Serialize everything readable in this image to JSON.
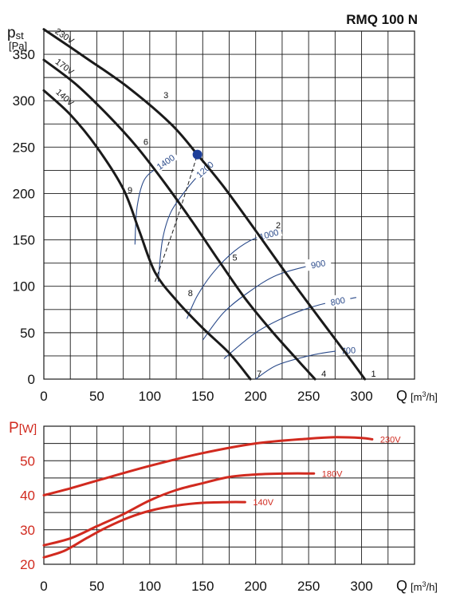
{
  "title": "RMQ 100 N",
  "chart_data": [
    {
      "type": "line",
      "title": "RMQ 100 N",
      "ylabel_main": "p",
      "ylabel_sub": "st",
      "yunit": "[Pa]",
      "xlabel": "Q",
      "xunit_pre": "[m",
      "xunit_sup": "3",
      "xunit_post": "/h]",
      "xlim": [
        0,
        350
      ],
      "ylim": [
        0,
        375
      ],
      "xticks": [
        "0",
        "50",
        "100",
        "150",
        "200",
        "250",
        "300"
      ],
      "yticks": [
        "0",
        "50",
        "100",
        "150",
        "200",
        "250",
        "300",
        "350"
      ],
      "grid": true,
      "series": [
        {
          "name": "230V",
          "color": "#1a1a1a",
          "points": [
            [
              0,
              377
            ],
            [
              40,
              346
            ],
            [
              80,
              314
            ],
            [
              120,
              275
            ],
            [
              145,
              242
            ],
            [
              170,
              207
            ],
            [
              200,
              160
            ],
            [
              230,
              112
            ],
            [
              260,
              66
            ],
            [
              285,
              28
            ],
            [
              303,
              0
            ]
          ]
        },
        {
          "name": "170V",
          "color": "#1a1a1a",
          "points": [
            [
              0,
              344
            ],
            [
              30,
              318
            ],
            [
              60,
              285
            ],
            [
              88,
              250
            ],
            [
              115,
              210
            ],
            [
              140,
              170
            ],
            [
              165,
              128
            ],
            [
              190,
              87
            ],
            [
              215,
              52
            ],
            [
              240,
              20
            ],
            [
              256,
              0
            ]
          ]
        },
        {
          "name": "140V",
          "color": "#1a1a1a",
          "points": [
            [
              0,
              311
            ],
            [
              25,
              285
            ],
            [
              50,
              250
            ],
            [
              75,
              205
            ],
            [
              90,
              160
            ],
            [
              105,
              115
            ],
            [
              125,
              85
            ],
            [
              150,
              55
            ],
            [
              175,
              28
            ],
            [
              195,
              0
            ]
          ]
        }
      ],
      "rpm_curves": [
        {
          "label": "1400",
          "color": "#2a4a8a",
          "points": [
            [
              86,
              145
            ],
            [
              88,
              185
            ],
            [
              95,
              215
            ],
            [
              110,
              230
            ],
            [
              120,
              238
            ]
          ]
        },
        {
          "label": "1200",
          "color": "#2a4a8a",
          "points": [
            [
              108,
              105
            ],
            [
              112,
              150
            ],
            [
              120,
              180
            ],
            [
              135,
              205
            ],
            [
              148,
              222
            ],
            [
              156,
              230
            ]
          ]
        },
        {
          "label": "1000",
          "color": "#2a4a8a",
          "points": [
            [
              135,
              65
            ],
            [
              145,
              90
            ],
            [
              160,
              115
            ],
            [
              180,
              138
            ],
            [
              200,
              152
            ],
            [
              225,
              160
            ]
          ]
        },
        {
          "label": "900",
          "color": "#2a4a8a",
          "points": [
            [
              150,
              42
            ],
            [
              170,
              72
            ],
            [
              195,
              95
            ],
            [
              220,
              112
            ],
            [
              250,
              122
            ],
            [
              268,
              126
            ]
          ]
        },
        {
          "label": "800",
          "color": "#2a4a8a",
          "points": [
            [
              170,
              22
            ],
            [
              200,
              50
            ],
            [
              230,
              68
            ],
            [
              260,
              80
            ],
            [
              295,
              88
            ]
          ]
        },
        {
          "label": "700",
          "color": "#2a4a8a",
          "points": [
            [
              200,
              0
            ],
            [
              220,
              15
            ],
            [
              250,
              25
            ],
            [
              275,
              30
            ],
            [
              300,
              32
            ]
          ]
        }
      ],
      "system_line": {
        "style": "dashed",
        "points": [
          [
            105,
            105
          ],
          [
            125,
            170
          ],
          [
            145,
            242
          ]
        ]
      },
      "operating_point": {
        "x": 145,
        "y": 242
      },
      "point_labels": [
        {
          "label": "1",
          "x": 303,
          "y": 0
        },
        {
          "label": "2",
          "x": 213,
          "y": 160
        },
        {
          "label": "3",
          "x": 107,
          "y": 300
        },
        {
          "label": "4",
          "x": 256,
          "y": 0
        },
        {
          "label": "5",
          "x": 172,
          "y": 125
        },
        {
          "label": "6",
          "x": 88,
          "y": 250
        },
        {
          "label": "7",
          "x": 195,
          "y": 0
        },
        {
          "label": "8",
          "x": 130,
          "y": 87
        },
        {
          "label": "9",
          "x": 73,
          "y": 198
        }
      ]
    },
    {
      "type": "line",
      "ylabel_main": "P",
      "yunit": "[W]",
      "xlabel": "Q",
      "xunit_pre": "[m",
      "xunit_sup": "3",
      "xunit_post": "/h]",
      "xlim": [
        0,
        350
      ],
      "ylim": [
        20,
        60
      ],
      "xticks": [
        "0",
        "50",
        "100",
        "150",
        "200",
        "250",
        "300"
      ],
      "yticks": [
        "20",
        "30",
        "40",
        "50"
      ],
      "grid": true,
      "series": [
        {
          "name": "230V",
          "color": "#d12a1f",
          "points": [
            [
              0,
              40
            ],
            [
              25,
              42
            ],
            [
              50,
              44.2
            ],
            [
              100,
              48.5
            ],
            [
              150,
              52.2
            ],
            [
              200,
              55
            ],
            [
              250,
              56.4
            ],
            [
              275,
              56.8
            ],
            [
              300,
              56.6
            ],
            [
              310,
              56.2
            ]
          ]
        },
        {
          "name": "180V",
          "color": "#d12a1f",
          "points": [
            [
              0,
              25.5
            ],
            [
              25,
              27.5
            ],
            [
              50,
              31
            ],
            [
              75,
              34.5
            ],
            [
              100,
              38.5
            ],
            [
              125,
              41.5
            ],
            [
              150,
              43.5
            ],
            [
              175,
              45.3
            ],
            [
              200,
              46
            ],
            [
              230,
              46.3
            ],
            [
              255,
              46.3
            ]
          ]
        },
        {
          "name": "140V",
          "color": "#d12a1f",
          "points": [
            [
              0,
              22
            ],
            [
              20,
              24
            ],
            [
              40,
              27.5
            ],
            [
              60,
              30.8
            ],
            [
              80,
              33.5
            ],
            [
              100,
              35.5
            ],
            [
              125,
              37
            ],
            [
              150,
              37.8
            ],
            [
              175,
              38
            ],
            [
              190,
              38
            ]
          ]
        }
      ]
    }
  ]
}
